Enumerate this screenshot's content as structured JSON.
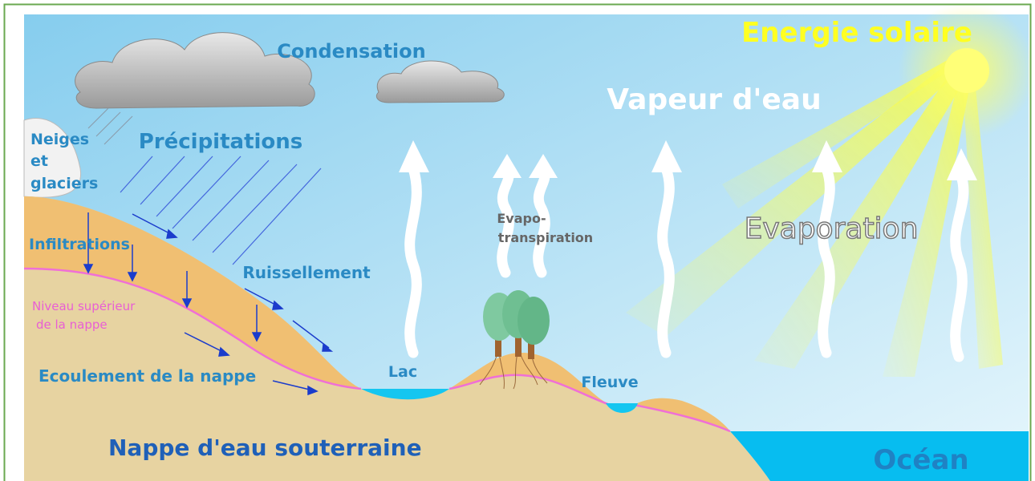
{
  "labels": {
    "energie_solaire": "Energie solaire",
    "condensation": "Condensation",
    "vapeur": "Vapeur d'eau",
    "neiges": [
      "Neiges",
      "et",
      "glaciers"
    ],
    "precipitations": "Précipitations",
    "infiltrations": "Infiltrations",
    "ruissellement": "Ruissellement",
    "niveau": [
      "Niveau supérieur",
      "de la nappe"
    ],
    "evapotranspiration": [
      "Evapo-",
      "transpiration"
    ],
    "evaporation": "Evaporation",
    "lac": "Lac",
    "fleuve": "Fleuve",
    "ecoulement": "Ecoulement de la nappe",
    "nappe": "Nappe d'eau souterraine",
    "ocean": "Océan"
  }
}
